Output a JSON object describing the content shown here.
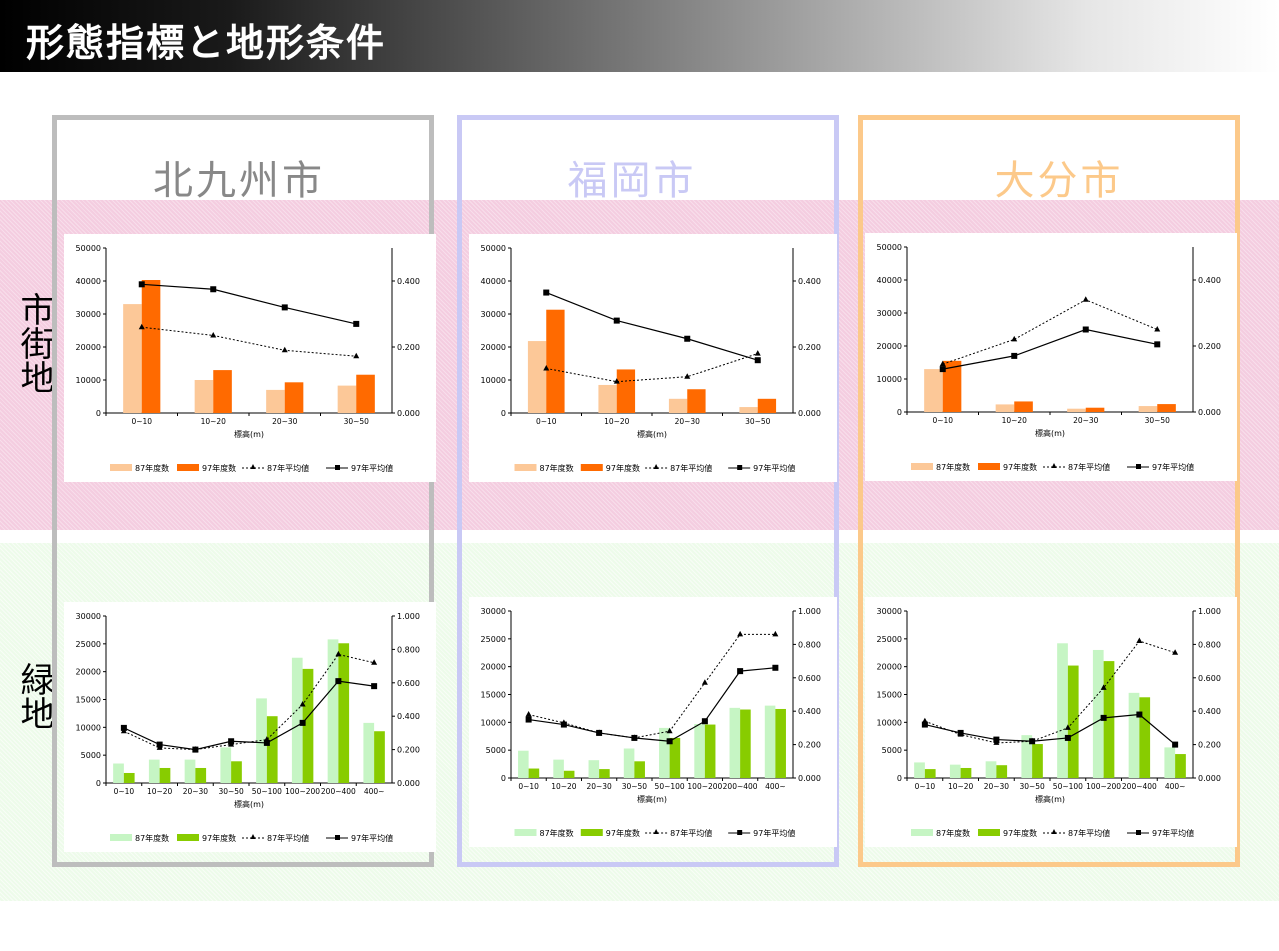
{
  "page_title": "形態指標と地形条件",
  "row_labels": {
    "urban": "市街地",
    "green": "緑地"
  },
  "cities": [
    {
      "name": "北九州市",
      "color": "#bdbdbd"
    },
    {
      "name": "福岡市",
      "color": "#c9c9f5"
    },
    {
      "name": "大分市",
      "color": "#fcc98a"
    }
  ],
  "chart_data": [
    {
      "type": "bar",
      "city": "北九州市",
      "area": "市街地",
      "categories": [
        "0~10",
        "10~20",
        "20~30",
        "30~50"
      ],
      "xlabel": "標高(m)",
      "ylim": [
        0,
        50000
      ],
      "y2lim": [
        0,
        0.5
      ],
      "yticks": [
        "0",
        "10000",
        "20000",
        "30000",
        "40000",
        "50000"
      ],
      "y2ticks": [
        "0.000",
        "0.200",
        "0.400"
      ],
      "series": [
        {
          "name": "87年度数",
          "kind": "bar",
          "color": "#fcc898",
          "values": [
            33000,
            10000,
            7000,
            8300
          ]
        },
        {
          "name": "97年度数",
          "kind": "bar",
          "color": "#ff6a00",
          "values": [
            40300,
            13000,
            9300,
            11600
          ]
        },
        {
          "name": "87年平均値",
          "kind": "line",
          "axis": "right",
          "dashed": true,
          "marker": "triangle",
          "values": [
            0.26,
            0.235,
            0.19,
            0.172
          ]
        },
        {
          "name": "97年平均値",
          "kind": "line",
          "axis": "right",
          "dashed": false,
          "marker": "square",
          "values": [
            0.39,
            0.375,
            0.32,
            0.27
          ]
        }
      ]
    },
    {
      "type": "bar",
      "city": "福岡市",
      "area": "市街地",
      "categories": [
        "0~10",
        "10~20",
        "20~30",
        "30~50"
      ],
      "xlabel": "標高(m)",
      "ylim": [
        0,
        50000
      ],
      "y2lim": [
        0,
        0.5
      ],
      "yticks": [
        "0",
        "10000",
        "20000",
        "30000",
        "40000",
        "50000"
      ],
      "y2ticks": [
        "0.000",
        "0.200",
        "0.400"
      ],
      "series": [
        {
          "name": "87年度数",
          "kind": "bar",
          "color": "#fcc898",
          "values": [
            21800,
            8500,
            4300,
            1800
          ]
        },
        {
          "name": "97年度数",
          "kind": "bar",
          "color": "#ff6a00",
          "values": [
            31300,
            13200,
            7200,
            4300
          ]
        },
        {
          "name": "87年平均値",
          "kind": "line",
          "axis": "right",
          "dashed": true,
          "marker": "triangle",
          "values": [
            0.135,
            0.095,
            0.11,
            0.18
          ]
        },
        {
          "name": "97年平均値",
          "kind": "line",
          "axis": "right",
          "dashed": false,
          "marker": "square",
          "values": [
            0.365,
            0.28,
            0.225,
            0.16
          ]
        }
      ]
    },
    {
      "type": "bar",
      "city": "大分市",
      "area": "市街地",
      "categories": [
        "0~10",
        "10~20",
        "20~30",
        "30~50"
      ],
      "xlabel": "標高(m)",
      "ylim": [
        0,
        50000
      ],
      "y2lim": [
        0,
        0.5
      ],
      "yticks": [
        "0",
        "10000",
        "20000",
        "30000",
        "40000",
        "50000"
      ],
      "y2ticks": [
        "0.000",
        "0.200",
        "0.400"
      ],
      "series": [
        {
          "name": "87年度数",
          "kind": "bar",
          "color": "#fcc898",
          "values": [
            13000,
            2300,
            1000,
            1800
          ]
        },
        {
          "name": "97年度数",
          "kind": "bar",
          "color": "#ff6a00",
          "values": [
            15500,
            3200,
            1300,
            2400
          ]
        },
        {
          "name": "87年平均値",
          "kind": "line",
          "axis": "right",
          "dashed": true,
          "marker": "triangle",
          "values": [
            0.145,
            0.22,
            0.34,
            0.25
          ]
        },
        {
          "name": "97年平均値",
          "kind": "line",
          "axis": "right",
          "dashed": false,
          "marker": "square",
          "values": [
            0.13,
            0.17,
            0.25,
            0.205
          ]
        }
      ]
    },
    {
      "type": "bar",
      "city": "北九州市",
      "area": "緑地",
      "categories": [
        "0~10",
        "10~20",
        "20~30",
        "30~50",
        "50~100",
        "100~200",
        "200~400",
        "400~"
      ],
      "xlabel": "標高(m)",
      "ylim": [
        0,
        30000
      ],
      "y2lim": [
        0,
        1.0
      ],
      "yticks": [
        "0",
        "5000",
        "10000",
        "15000",
        "20000",
        "25000",
        "30000"
      ],
      "y2ticks": [
        "0.000",
        "0.200",
        "0.400",
        "0.600",
        "0.800",
        "1.000"
      ],
      "series": [
        {
          "name": "87年度数",
          "kind": "bar",
          "color": "#c6f5c4",
          "values": [
            3500,
            4200,
            4200,
            6400,
            15200,
            22500,
            25800,
            10800
          ]
        },
        {
          "name": "97年度数",
          "kind": "bar",
          "color": "#88cc00",
          "values": [
            1800,
            2700,
            2700,
            3900,
            12000,
            20500,
            25100,
            9300
          ]
        },
        {
          "name": "87年平均値",
          "kind": "line",
          "axis": "right",
          "dashed": true,
          "marker": "triangle",
          "values": [
            0.31,
            0.21,
            0.2,
            0.23,
            0.26,
            0.47,
            0.77,
            0.72
          ]
        },
        {
          "name": "97年平均値",
          "kind": "line",
          "axis": "right",
          "dashed": false,
          "marker": "square",
          "values": [
            0.33,
            0.23,
            0.2,
            0.25,
            0.24,
            0.36,
            0.61,
            0.58
          ]
        }
      ]
    },
    {
      "type": "bar",
      "city": "福岡市",
      "area": "緑地",
      "categories": [
        "0~10",
        "10~20",
        "20~30",
        "30~50",
        "50~100",
        "100~200",
        "200~400",
        "400~"
      ],
      "xlabel": "標高(m)",
      "ylim": [
        0,
        30000
      ],
      "y2lim": [
        0,
        1.0
      ],
      "yticks": [
        "0",
        "5000",
        "10000",
        "15000",
        "20000",
        "25000",
        "30000"
      ],
      "y2ticks": [
        "0.000",
        "0.200",
        "0.400",
        "0.600",
        "0.800",
        "1.000"
      ],
      "series": [
        {
          "name": "87年度数",
          "kind": "bar",
          "color": "#c6f5c4",
          "values": [
            4900,
            3300,
            3200,
            5300,
            9000,
            9700,
            12600,
            13000
          ]
        },
        {
          "name": "97年度数",
          "kind": "bar",
          "color": "#88cc00",
          "values": [
            1700,
            1300,
            1600,
            3000,
            7200,
            9600,
            12300,
            12400
          ]
        },
        {
          "name": "87年平均値",
          "kind": "line",
          "axis": "right",
          "dashed": true,
          "marker": "triangle",
          "values": [
            0.38,
            0.33,
            0.27,
            0.24,
            0.28,
            0.57,
            0.86,
            0.86
          ]
        },
        {
          "name": "97年平均値",
          "kind": "line",
          "axis": "right",
          "dashed": false,
          "marker": "square",
          "values": [
            0.35,
            0.32,
            0.27,
            0.24,
            0.22,
            0.34,
            0.64,
            0.66
          ]
        }
      ]
    },
    {
      "type": "bar",
      "city": "大分市",
      "area": "緑地",
      "categories": [
        "0~10",
        "10~20",
        "20~30",
        "30~50",
        "50~100",
        "100~200",
        "200~400",
        "400~"
      ],
      "xlabel": "標高(m)",
      "ylim": [
        0,
        30000
      ],
      "y2lim": [
        0,
        1.0
      ],
      "yticks": [
        "0",
        "5000",
        "10000",
        "15000",
        "20000",
        "25000",
        "30000"
      ],
      "y2ticks": [
        "0.000",
        "0.200",
        "0.400",
        "0.600",
        "0.800",
        "1.000"
      ],
      "series": [
        {
          "name": "87年度数",
          "kind": "bar",
          "color": "#c6f5c4",
          "values": [
            2800,
            2400,
            3000,
            7700,
            24200,
            23000,
            15300,
            5500
          ]
        },
        {
          "name": "97年度数",
          "kind": "bar",
          "color": "#88cc00",
          "values": [
            1600,
            1800,
            2300,
            6100,
            20200,
            21000,
            14500,
            4300
          ]
        },
        {
          "name": "87年平均値",
          "kind": "line",
          "axis": "right",
          "dashed": true,
          "marker": "triangle",
          "values": [
            0.34,
            0.26,
            0.21,
            0.22,
            0.3,
            0.54,
            0.82,
            0.75
          ]
        },
        {
          "name": "97年平均値",
          "kind": "line",
          "axis": "right",
          "dashed": false,
          "marker": "square",
          "values": [
            0.32,
            0.27,
            0.23,
            0.22,
            0.24,
            0.36,
            0.38,
            0.2
          ]
        }
      ]
    }
  ]
}
